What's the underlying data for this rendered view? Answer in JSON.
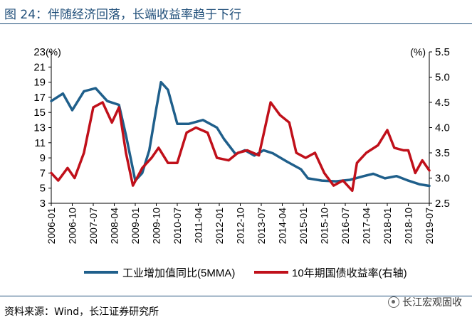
{
  "title": "图 24：伴随经济回落，长端收益率趋于下行",
  "source_text": "资料来源：Wind，长江证券研究所",
  "watermark_text": "长江宏观固收",
  "colors": {
    "title": "#1f4e79",
    "series_industry": "#1f5f8b",
    "series_bond": "#c0101a",
    "axis": "#000000"
  },
  "chart_data": {
    "type": "line",
    "title": "",
    "y_left": {
      "label": "(%)",
      "range": [
        3,
        23
      ],
      "ticks": [
        "3",
        "5",
        "7",
        "9",
        "11",
        "13",
        "15",
        "17",
        "19",
        "21",
        "23"
      ]
    },
    "y_right": {
      "label": "(%)",
      "range": [
        2.5,
        5.5
      ],
      "ticks": [
        "2.5",
        "3.0",
        "3.5",
        "4.0",
        "4.5",
        "5.0",
        "5.5"
      ]
    },
    "x_range": [
      "2006-01",
      "2019-07"
    ],
    "x_ticks": [
      "2006-01",
      "2006-10",
      "2007-07",
      "2008-04",
      "2009-01",
      "2009-10",
      "2010-07",
      "2011-04",
      "2012-01",
      "2012-10",
      "2013-07",
      "2014-04",
      "2015-01",
      "2015-10",
      "2016-07",
      "2017-04",
      "2018-01",
      "2018-10",
      "2019-07"
    ],
    "series": [
      {
        "name": "工业增加值同比(5MMA)",
        "axis": "left",
        "x": [
          "2006-01",
          "2006-06",
          "2006-10",
          "2007-03",
          "2007-08",
          "2008-01",
          "2008-06",
          "2008-09",
          "2009-01",
          "2009-04",
          "2009-07",
          "2009-10",
          "2009-12",
          "2010-03",
          "2010-07",
          "2010-12",
          "2011-06",
          "2011-12",
          "2012-03",
          "2012-08",
          "2012-12",
          "2013-04",
          "2013-08",
          "2013-12",
          "2014-06",
          "2014-12",
          "2015-03",
          "2015-09",
          "2016-03",
          "2016-09",
          "2017-03",
          "2017-07",
          "2017-12",
          "2018-05",
          "2018-10",
          "2019-03",
          "2019-07"
        ],
        "values": [
          16.5,
          17.5,
          15.3,
          17.8,
          18.2,
          16.5,
          16.0,
          12.0,
          6.0,
          7.0,
          10.0,
          15.5,
          19.0,
          18.0,
          13.5,
          13.5,
          14.0,
          13.0,
          11.5,
          9.5,
          10.0,
          9.3,
          10.0,
          9.6,
          8.5,
          7.5,
          6.3,
          6.0,
          5.9,
          6.1,
          6.6,
          6.9,
          6.3,
          6.6,
          6.0,
          5.5,
          5.3
        ]
      },
      {
        "name": "10年期国债收益率(右轴)",
        "axis": "right",
        "x": [
          "2006-01",
          "2006-04",
          "2006-08",
          "2006-11",
          "2007-03",
          "2007-07",
          "2007-11",
          "2008-03",
          "2008-06",
          "2008-09",
          "2008-12",
          "2009-04",
          "2009-08",
          "2009-11",
          "2010-03",
          "2010-07",
          "2010-11",
          "2011-03",
          "2011-08",
          "2011-12",
          "2012-05",
          "2012-09",
          "2013-01",
          "2013-06",
          "2013-11",
          "2014-03",
          "2014-07",
          "2014-10",
          "2015-02",
          "2015-06",
          "2015-10",
          "2016-02",
          "2016-06",
          "2016-10",
          "2016-12",
          "2017-04",
          "2017-09",
          "2018-01",
          "2018-04",
          "2018-08",
          "2018-10",
          "2019-01",
          "2019-04",
          "2019-07"
        ],
        "values": [
          3.1,
          2.95,
          3.2,
          3.0,
          3.5,
          4.4,
          4.5,
          4.1,
          4.4,
          3.5,
          2.85,
          3.2,
          3.4,
          3.6,
          3.3,
          3.3,
          3.9,
          4.0,
          3.9,
          3.4,
          3.35,
          3.5,
          3.55,
          3.45,
          4.5,
          4.25,
          4.1,
          3.5,
          3.4,
          3.5,
          3.1,
          2.85,
          2.95,
          2.75,
          3.3,
          3.5,
          3.65,
          3.95,
          3.6,
          3.55,
          3.55,
          3.1,
          3.35,
          3.15
        ]
      }
    ],
    "legend": [
      "工业增加值同比(5MMA)",
      "10年期国债收益率(右轴)"
    ],
    "legend_position": "bottom"
  }
}
